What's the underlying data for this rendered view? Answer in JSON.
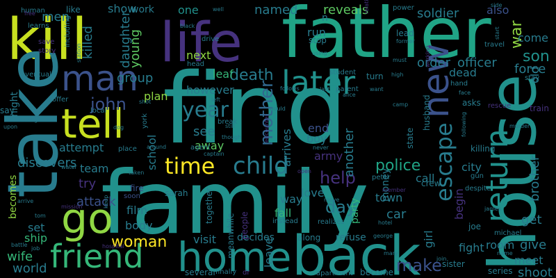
{
  "background": "#000000",
  "palette": {
    "purple_dark": "#46327e",
    "purple": "#3b528b",
    "blue": "#31688e",
    "teal_blue": "#287c8e",
    "teal": "#21918c",
    "green_teal": "#20a486",
    "green": "#35b779",
    "lime_green": "#5ec962",
    "yellow_green": "#90d743",
    "yellow": "#c8e020",
    "yellow_bright": "#fde725",
    "indigo": "#443983",
    "dark_violet": "#440154"
  },
  "words": [
    {
      "text": "find"
    },
    {
      "text": "family"
    },
    {
      "text": "father"
    },
    {
      "text": "kill"
    },
    {
      "text": "life"
    },
    {
      "text": "take"
    },
    {
      "text": "house"
    },
    {
      "text": "back"
    },
    {
      "text": "home"
    },
    {
      "text": "tell"
    },
    {
      "text": "man"
    },
    {
      "text": "go"
    },
    {
      "text": "later"
    },
    {
      "text": "new"
    },
    {
      "text": "friend"
    },
    {
      "text": "return"
    },
    {
      "text": "child"
    },
    {
      "text": "time"
    },
    {
      "text": "mother"
    },
    {
      "text": "escape"
    },
    {
      "text": "police"
    },
    {
      "text": "woman"
    },
    {
      "text": "year"
    },
    {
      "text": "john"
    },
    {
      "text": "help"
    },
    {
      "text": "day"
    },
    {
      "text": "make"
    },
    {
      "text": "son"
    },
    {
      "text": "death"
    },
    {
      "text": "group"
    },
    {
      "text": "killed"
    },
    {
      "text": "men"
    },
    {
      "text": "daughter"
    },
    {
      "text": "young"
    },
    {
      "text": "show"
    },
    {
      "text": "work"
    },
    {
      "text": "named"
    },
    {
      "text": "reveals"
    },
    {
      "text": "soldier"
    },
    {
      "text": "also"
    },
    {
      "text": "war"
    },
    {
      "text": "one"
    },
    {
      "text": "next"
    },
    {
      "text": "leaf"
    },
    {
      "text": "however"
    },
    {
      "text": "see"
    },
    {
      "text": "away"
    },
    {
      "text": "plan"
    },
    {
      "text": "school"
    },
    {
      "text": "body"
    },
    {
      "text": "film"
    },
    {
      "text": "attack"
    },
    {
      "text": "try"
    },
    {
      "text": "team"
    },
    {
      "text": "discovers"
    },
    {
      "text": "attempt"
    },
    {
      "text": "ship"
    },
    {
      "text": "wife"
    },
    {
      "text": "world"
    },
    {
      "text": "becomes"
    },
    {
      "text": "set"
    },
    {
      "text": "night"
    },
    {
      "text": "visit"
    },
    {
      "text": "arrives"
    },
    {
      "text": "end"
    },
    {
      "text": "boy"
    },
    {
      "text": "army"
    },
    {
      "text": "another"
    },
    {
      "text": "love"
    },
    {
      "text": "way"
    },
    {
      "text": "fall"
    },
    {
      "text": "party"
    },
    {
      "text": "money"
    },
    {
      "text": "town"
    },
    {
      "text": "car"
    },
    {
      "text": "girl"
    },
    {
      "text": "begin"
    },
    {
      "text": "city"
    },
    {
      "text": "call"
    },
    {
      "text": "order"
    },
    {
      "text": "officer"
    },
    {
      "text": "dead"
    },
    {
      "text": "force"
    },
    {
      "text": "brother"
    },
    {
      "text": "old"
    },
    {
      "text": "get"
    },
    {
      "text": "give"
    },
    {
      "text": "meet"
    },
    {
      "text": "shoot"
    },
    {
      "text": "room"
    },
    {
      "text": "fight"
    },
    {
      "text": "come"
    },
    {
      "text": "run"
    },
    {
      "text": "stop"
    },
    {
      "text": "lead"
    },
    {
      "text": "leave"
    },
    {
      "text": "refuse"
    },
    {
      "text": "decides"
    },
    {
      "text": "together"
    },
    {
      "text": "several"
    },
    {
      "text": "meanwhile"
    },
    {
      "text": "people"
    },
    {
      "text": "along"
    },
    {
      "text": "finally"
    },
    {
      "text": "become"
    },
    {
      "text": "apartment"
    },
    {
      "text": "sister"
    },
    {
      "text": "series"
    },
    {
      "text": "husband"
    },
    {
      "text": "state"
    },
    {
      "text": "student"
    },
    {
      "text": "parent"
    },
    {
      "text": "last"
    },
    {
      "text": "want"
    },
    {
      "text": "human"
    },
    {
      "text": "like"
    },
    {
      "text": "learns"
    },
    {
      "text": "save"
    },
    {
      "text": "story"
    },
    {
      "text": "including"
    },
    {
      "text": "station"
    },
    {
      "text": "eventually"
    },
    {
      "text": "offer"
    },
    {
      "text": "local"
    },
    {
      "text": "leaving"
    },
    {
      "text": "dog"
    },
    {
      "text": "upon"
    },
    {
      "text": "say"
    },
    {
      "text": "arrive"
    },
    {
      "text": "tom"
    },
    {
      "text": "battle"
    },
    {
      "text": "job"
    },
    {
      "text": "mission"
    },
    {
      "text": "water"
    },
    {
      "text": "taken"
    },
    {
      "text": "fire"
    },
    {
      "text": "soon"
    },
    {
      "text": "keep"
    },
    {
      "text": "sarah"
    },
    {
      "text": "place"
    },
    {
      "text": "around"
    },
    {
      "text": "agent"
    },
    {
      "text": "captain"
    },
    {
      "text": "york"
    },
    {
      "text": "shot"
    },
    {
      "text": "left"
    },
    {
      "text": "break"
    },
    {
      "text": "still"
    },
    {
      "text": "would"
    },
    {
      "text": "encounter"
    },
    {
      "text": "though"
    },
    {
      "text": "never"
    },
    {
      "text": "hospital"
    },
    {
      "text": "power"
    },
    {
      "text": "drive"
    },
    {
      "text": "black"
    },
    {
      "text": "well"
    },
    {
      "text": "free"
    },
    {
      "text": "head"
    },
    {
      "text": "using"
    },
    {
      "text": "relationship"
    },
    {
      "text": "former"
    },
    {
      "text": "working"
    },
    {
      "text": "high"
    },
    {
      "text": "must"
    },
    {
      "text": "follows"
    },
    {
      "text": "alice"
    },
    {
      "text": "camp"
    },
    {
      "text": "hand"
    },
    {
      "text": "face"
    },
    {
      "text": "asks"
    },
    {
      "text": "rescue"
    },
    {
      "text": "killing"
    },
    {
      "text": "following"
    },
    {
      "text": "murder"
    },
    {
      "text": "train"
    },
    {
      "text": "stay"
    },
    {
      "text": "travel"
    },
    {
      "text": "start"
    },
    {
      "text": "turn"
    },
    {
      "text": "peter"
    },
    {
      "text": "open"
    },
    {
      "text": "member"
    },
    {
      "text": "move"
    },
    {
      "text": "realizes"
    },
    {
      "text": "instead"
    },
    {
      "text": "george"
    },
    {
      "text": "mary"
    },
    {
      "text": "join"
    },
    {
      "text": "name"
    },
    {
      "text": "crew"
    },
    {
      "text": "gun"
    },
    {
      "text": "despite"
    },
    {
      "text": "james"
    },
    {
      "text": "joe"
    },
    {
      "text": "michael"
    },
    {
      "text": "hotel"
    },
    {
      "text": "dr"
    },
    {
      "text": "n"
    },
    {
      "text": "side"
    }
  ]
}
